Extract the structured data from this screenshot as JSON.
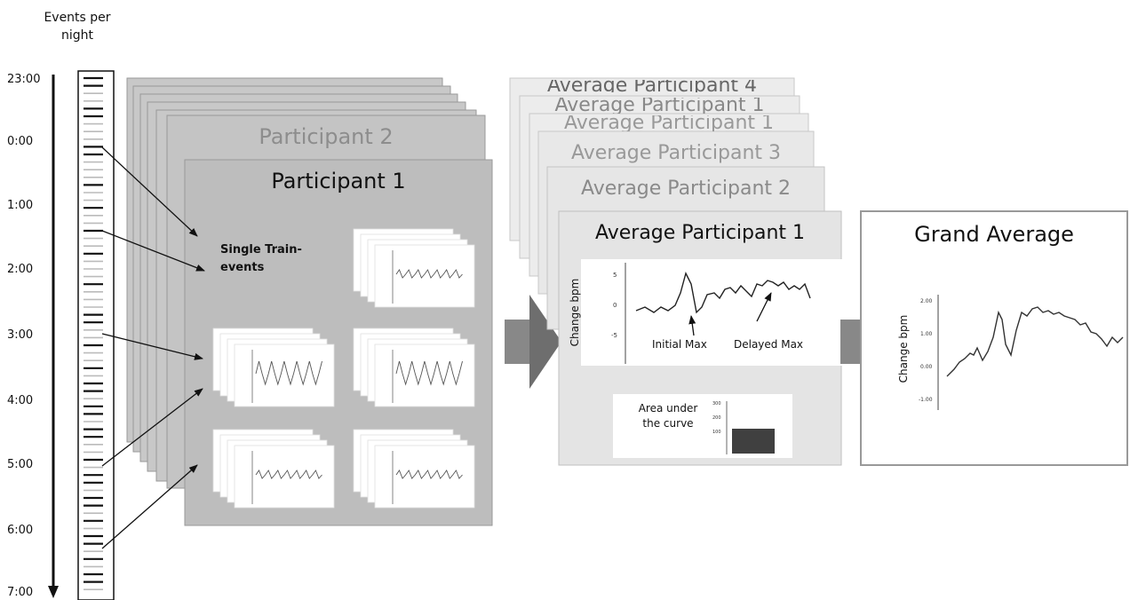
{
  "timeline": {
    "header": "Events per\nnight",
    "times": [
      "23:00",
      "0:00",
      "1:00",
      "2:00",
      "3:00",
      "4:00",
      "5:00",
      "6:00",
      "7:00"
    ]
  },
  "participants": {
    "back_title": "Participant 2",
    "front_title": "Participant 1",
    "single_train_label": "Single Train-\nevents"
  },
  "averages": {
    "back_titles": [
      "Average Participant 4",
      "Average Participant 1",
      "Average Participant 1",
      "Average Participant 3",
      "Average Participant 2"
    ],
    "front_title": "Average Participant 1",
    "chart": {
      "ylabel": "Change bpm",
      "yticks": [
        "5",
        "0",
        "-5"
      ],
      "annotation_initial": "Initial Max",
      "annotation_delayed": "Delayed Max"
    },
    "area_label": "Area under\nthe curve",
    "area_yticks": [
      "300",
      "200",
      "100"
    ]
  },
  "grand": {
    "title": "Grand Average",
    "ylabel": "Change bpm",
    "yticks": [
      "2.00",
      "1.00",
      "0.00",
      "-1.00"
    ]
  },
  "colors": {
    "sheet_dark": "#c4c4c4",
    "sheet_front": "#bdbdbd",
    "sheet_light": "#e8e8e8",
    "arrow_block": "#707070",
    "line": "#555555"
  }
}
